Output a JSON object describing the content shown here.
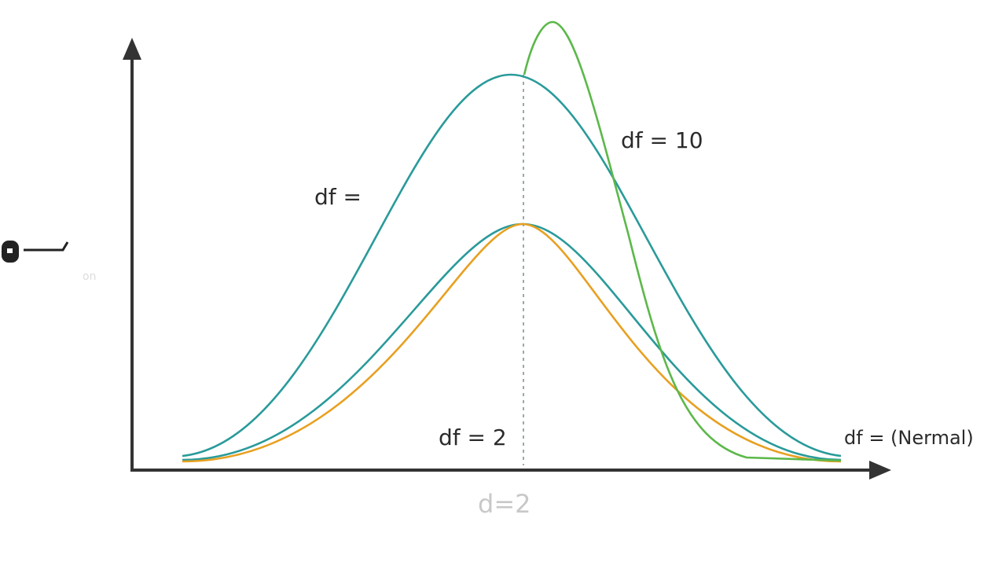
{
  "labels": {
    "df_left": "df =",
    "df_ten": "df = 10",
    "df_two": "df = 2",
    "df_normal": "df = (Nermal)",
    "axis_center": "d=2",
    "faint_left": "on"
  }
}
